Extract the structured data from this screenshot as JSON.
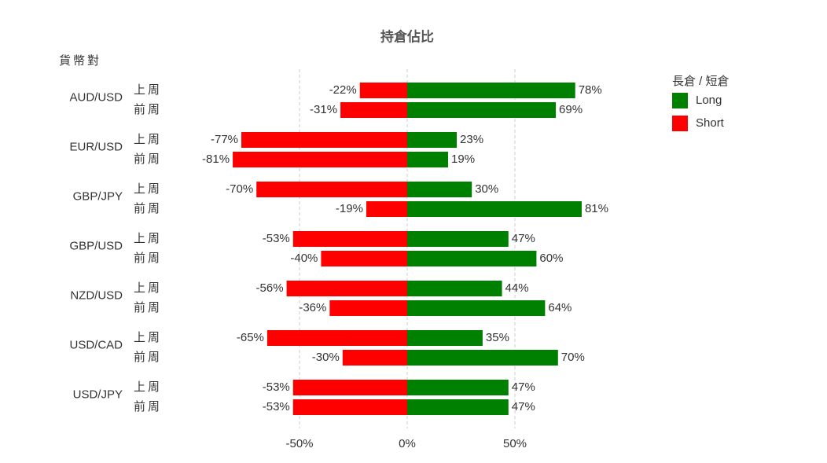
{
  "chart_data": {
    "type": "diverging-bar",
    "title": "持倉佔比",
    "group_label": "貨幣對",
    "legend_title": "長倉 / 短倉",
    "categories": [
      "AUD/USD",
      "EUR/USD",
      "GBP/JPY",
      "GBP/USD",
      "NZD/USD",
      "USD/CAD",
      "USD/JPY"
    ],
    "periods": [
      "上周",
      "前周"
    ],
    "series": [
      {
        "name": "Long",
        "color": "#008000",
        "values": [
          [
            78,
            69
          ],
          [
            23,
            19
          ],
          [
            30,
            81
          ],
          [
            47,
            60
          ],
          [
            44,
            64
          ],
          [
            35,
            70
          ],
          [
            47,
            47
          ]
        ],
        "value_labels": [
          [
            "78%",
            "69%"
          ],
          [
            "23%",
            "19%"
          ],
          [
            "30%",
            "81%"
          ],
          [
            "47%",
            "60%"
          ],
          [
            "44%",
            "64%"
          ],
          [
            "35%",
            "70%"
          ],
          [
            "47%",
            "47%"
          ]
        ]
      },
      {
        "name": "Short",
        "color": "#ff0000",
        "values": [
          [
            -22,
            -31
          ],
          [
            -77,
            -81
          ],
          [
            -70,
            -19
          ],
          [
            -53,
            -40
          ],
          [
            -56,
            -36
          ],
          [
            -65,
            -30
          ],
          [
            -53,
            -53
          ]
        ],
        "value_labels": [
          [
            "-22%",
            "-31%"
          ],
          [
            "-77%",
            "-81%"
          ],
          [
            "-70%",
            "-19%"
          ],
          [
            "-53%",
            "-40%"
          ],
          [
            "-56%",
            "-36%"
          ],
          [
            "-65%",
            "-30%"
          ],
          [
            "-53%",
            "-53%"
          ]
        ]
      }
    ],
    "xlim": [
      -100,
      100
    ],
    "xticks": [
      {
        "value": -50,
        "label": "-50%"
      },
      {
        "value": 0,
        "label": "0%"
      },
      {
        "value": 50,
        "label": "50%"
      }
    ],
    "grid": true,
    "legend_position": "right"
  }
}
